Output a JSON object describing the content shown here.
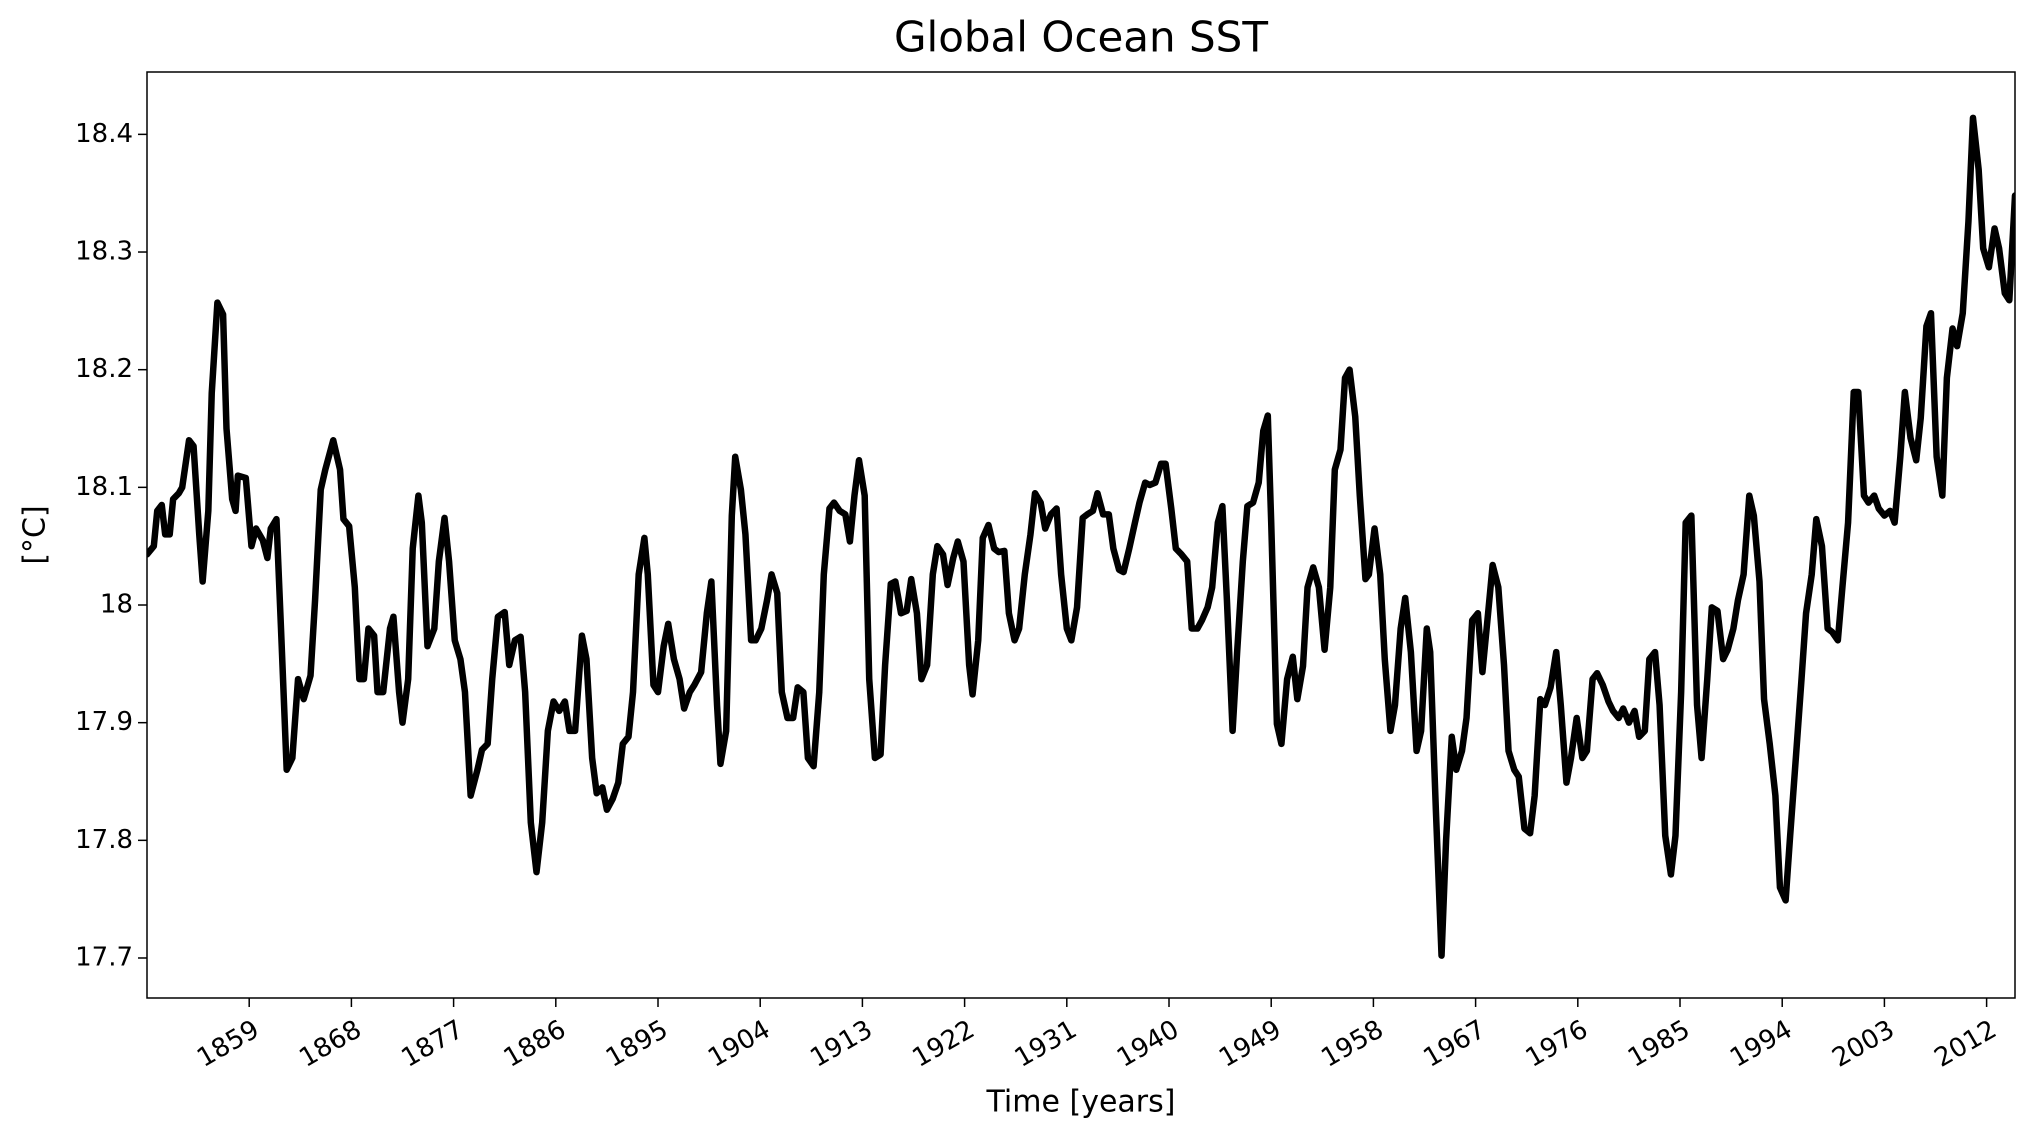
{
  "chart_data": {
    "type": "line",
    "title": "Global Ocean SST",
    "xlabel": "Time [years]",
    "ylabel": "[°C]",
    "color": "#000000",
    "x": [
      1850.0,
      1850.6,
      1850.9,
      1851.3,
      1851.6,
      1852.0,
      1852.3,
      1852.8,
      1853.1,
      1853.7,
      1854.1,
      1854.6,
      1854.9,
      1855.4,
      1855.7,
      1856.2,
      1856.7,
      1857.0,
      1857.5,
      1857.8,
      1858.0,
      1858.7,
      1859.2,
      1859.6,
      1860.2,
      1860.6,
      1860.9,
      1861.4,
      1861.8,
      1862.3,
      1862.8,
      1863.3,
      1863.8,
      1864.4,
      1864.8,
      1865.3,
      1865.7,
      1866.4,
      1867.0,
      1867.3,
      1867.8,
      1868.3,
      1868.7,
      1869.1,
      1869.5,
      1870.0,
      1870.3,
      1870.8,
      1871.4,
      1871.7,
      1872.2,
      1872.5,
      1873.0,
      1873.4,
      1873.9,
      1874.2,
      1874.7,
      1875.3,
      1875.7,
      1876.2,
      1876.6,
      1877.1,
      1877.6,
      1878.0,
      1878.5,
      1879.1,
      1879.5,
      1880.0,
      1880.4,
      1880.9,
      1881.5,
      1881.9,
      1882.4,
      1882.9,
      1883.3,
      1883.8,
      1884.3,
      1884.8,
      1885.3,
      1885.8,
      1886.3,
      1886.8,
      1887.2,
      1887.7,
      1888.3,
      1888.7,
      1889.2,
      1889.6,
      1890.1,
      1890.5,
      1891.0,
      1891.5,
      1891.9,
      1892.4,
      1892.8,
      1893.3,
      1893.8,
      1894.1,
      1894.6,
      1895.0,
      1895.5,
      1895.9,
      1896.4,
      1896.9,
      1897.3,
      1897.8,
      1898.2,
      1898.8,
      1899.3,
      1899.7,
      1900.2,
      1900.5,
      1901.0,
      1901.5,
      1901.8,
      1902.3,
      1902.7,
      1903.2,
      1903.6,
      1904.1,
      1904.6,
      1905.0,
      1905.5,
      1905.9,
      1906.4,
      1906.9,
      1907.3,
      1907.8,
      1908.2,
      1908.7,
      1909.2,
      1909.6,
      1910.1,
      1910.5,
      1911.0,
      1911.5,
      1911.9,
      1912.3,
      1912.7,
      1913.2,
      1913.6,
      1914.1,
      1914.6,
      1915.0,
      1915.5,
      1915.9,
      1916.4,
      1916.9,
      1917.3,
      1917.8,
      1918.2,
      1918.7,
      1919.2,
      1919.6,
      1920.1,
      1920.5,
      1921.0,
      1921.4,
      1921.9,
      1922.4,
      1922.7,
      1923.2,
      1923.6,
      1924.1,
      1924.6,
      1925.0,
      1925.5,
      1925.9,
      1926.4,
      1926.8,
      1927.3,
      1927.8,
      1928.2,
      1928.7,
      1929.1,
      1929.6,
      1930.1,
      1930.5,
      1931.0,
      1931.4,
      1931.9,
      1932.4,
      1932.8,
      1933.3,
      1933.7,
      1934.2,
      1934.7,
      1935.1,
      1935.6,
      1936.0,
      1936.5,
      1937.0,
      1937.4,
      1937.9,
      1938.3,
      1938.8,
      1939.3,
      1939.7,
      1940.2,
      1940.6,
      1941.1,
      1941.6,
      1942.0,
      1942.5,
      1942.9,
      1943.4,
      1943.8,
      1944.3,
      1944.7,
      1945.1,
      1945.6,
      1946.0,
      1946.5,
      1946.9,
      1947.4,
      1947.9,
      1948.3,
      1948.7,
      1949.0,
      1949.5,
      1949.9,
      1950.4,
      1950.9,
      1951.3,
      1951.8,
      1952.2,
      1952.7,
      1953.2,
      1953.7,
      1954.2,
      1954.6,
      1955.1,
      1955.5,
      1955.9,
      1956.4,
      1956.8,
      1957.3,
      1957.6,
      1958.1,
      1958.6,
      1959.0,
      1959.5,
      1959.9,
      1960.4,
      1960.8,
      1961.3,
      1961.8,
      1962.2,
      1962.7,
      1963.0,
      1963.5,
      1964.0,
      1964.4,
      1964.9,
      1965.3,
      1965.8,
      1966.2,
      1966.7,
      1967.2,
      1967.6,
      1968.1,
      1968.5,
      1969.0,
      1969.5,
      1969.9,
      1970.4,
      1970.8,
      1971.3,
      1971.8,
      1972.2,
      1972.7,
      1973.1,
      1973.6,
      1974.1,
      1974.5,
      1975.0,
      1975.4,
      1975.9,
      1976.4,
      1976.8,
      1977.3,
      1977.7,
      1978.2,
      1978.7,
      1979.1,
      1979.6,
      1980.0,
      1980.5,
      1981.0,
      1981.4,
      1981.9,
      1982.3,
      1982.8,
      1983.2,
      1983.7,
      1984.2,
      1984.6,
      1985.1,
      1985.5,
      1986.0,
      1986.5,
      1986.9,
      1987.4,
      1987.8,
      1988.3,
      1988.8,
      1989.2,
      1989.7,
      1990.1,
      1990.6,
      1991.1,
      1991.5,
      1992.0,
      1992.4,
      1992.9,
      1993.4,
      1993.8,
      1994.3,
      1994.7,
      1995.2,
      1995.7,
      1996.1,
      1996.6,
      1997.0,
      1997.5,
      1998.0,
      1998.4,
      1998.9,
      1999.3,
      1999.8,
      2000.3,
      2000.7,
      2001.2,
      2001.6,
      2002.1,
      2002.5,
      2003.0,
      2003.5,
      2003.9,
      2004.4,
      2004.8,
      2005.3,
      2005.8,
      2006.2,
      2006.7,
      2007.1,
      2007.6,
      2008.1,
      2008.5,
      2009.0,
      2009.4,
      2009.9,
      2010.4,
      2010.8,
      2011.3,
      2011.7,
      2012.2,
      2012.7,
      2013.1,
      2013.6,
      2014.0,
      2014.5
    ],
    "values": [
      18.043,
      18.05,
      18.08,
      18.085,
      18.06,
      18.06,
      18.09,
      18.095,
      18.1,
      18.14,
      18.135,
      18.06,
      18.02,
      18.08,
      18.18,
      18.257,
      18.247,
      18.15,
      18.09,
      18.08,
      18.11,
      18.108,
      18.05,
      18.065,
      18.055,
      18.04,
      18.065,
      18.073,
      17.98,
      17.86,
      17.87,
      17.937,
      17.92,
      17.94,
      18.004,
      18.098,
      18.115,
      18.14,
      18.115,
      18.073,
      18.067,
      18.015,
      17.937,
      17.937,
      17.98,
      17.974,
      17.926,
      17.926,
      17.98,
      17.99,
      17.926,
      17.9,
      17.937,
      18.048,
      18.093,
      18.07,
      17.965,
      17.98,
      18.037,
      18.074,
      18.037,
      17.97,
      17.954,
      17.926,
      17.838,
      17.86,
      17.877,
      17.882,
      17.937,
      17.99,
      17.994,
      17.949,
      17.97,
      17.973,
      17.926,
      17.815,
      17.773,
      17.815,
      17.893,
      17.918,
      17.91,
      17.918,
      17.893,
      17.893,
      17.974,
      17.954,
      17.87,
      17.84,
      17.845,
      17.826,
      17.835,
      17.849,
      17.882,
      17.888,
      17.926,
      18.026,
      18.057,
      18.026,
      17.932,
      17.926,
      17.965,
      17.984,
      17.954,
      17.937,
      17.912,
      17.926,
      17.932,
      17.943,
      17.993,
      18.02,
      17.915,
      17.865,
      17.893,
      18.076,
      18.126,
      18.098,
      18.06,
      17.97,
      17.97,
      17.98,
      18.004,
      18.026,
      18.01,
      17.926,
      17.904,
      17.904,
      17.93,
      17.926,
      17.87,
      17.863,
      17.926,
      18.026,
      18.082,
      18.087,
      18.08,
      18.077,
      18.054,
      18.093,
      18.123,
      18.093,
      17.937,
      17.87,
      17.873,
      17.949,
      18.018,
      18.02,
      17.993,
      17.995,
      18.022,
      17.993,
      17.937,
      17.949,
      18.026,
      18.05,
      18.043,
      18.017,
      18.04,
      18.054,
      18.037,
      17.949,
      17.924,
      17.97,
      18.057,
      18.068,
      18.048,
      18.045,
      18.046,
      17.993,
      17.97,
      17.98,
      18.026,
      18.06,
      18.095,
      18.087,
      18.065,
      18.077,
      18.082,
      18.026,
      17.98,
      17.97,
      17.998,
      18.074,
      18.077,
      18.08,
      18.095,
      18.077,
      18.077,
      18.048,
      18.03,
      18.028,
      18.048,
      18.07,
      18.087,
      18.104,
      18.102,
      18.104,
      18.12,
      18.12,
      18.082,
      18.048,
      18.043,
      18.037,
      17.98,
      17.98,
      17.987,
      17.998,
      18.015,
      18.07,
      18.084,
      18.004,
      17.893,
      17.96,
      18.037,
      18.084,
      18.087,
      18.104,
      18.148,
      18.161,
      18.07,
      17.899,
      17.882,
      17.937,
      17.956,
      17.92,
      17.948,
      18.015,
      18.032,
      18.015,
      17.962,
      18.015,
      18.115,
      18.132,
      18.193,
      18.2,
      18.16,
      18.093,
      18.022,
      18.026,
      18.065,
      18.026,
      17.954,
      17.893,
      17.915,
      17.98,
      18.006,
      17.96,
      17.876,
      17.893,
      17.98,
      17.96,
      17.826,
      17.702,
      17.8,
      17.888,
      17.86,
      17.876,
      17.904,
      17.987,
      17.993,
      17.943,
      17.993,
      18.034,
      18.015,
      17.949,
      17.876,
      17.86,
      17.854,
      17.81,
      17.806,
      17.838,
      17.92,
      17.915,
      17.93,
      17.96,
      17.915,
      17.849,
      17.87,
      17.904,
      17.87,
      17.876,
      17.937,
      17.942,
      17.932,
      17.918,
      17.91,
      17.904,
      17.912,
      17.9,
      17.91,
      17.888,
      17.893,
      17.954,
      17.96,
      17.915,
      17.804,
      17.771,
      17.804,
      17.926,
      18.07,
      18.076,
      17.915,
      17.87,
      17.937,
      17.998,
      17.995,
      17.954,
      17.962,
      17.98,
      18.004,
      18.026,
      18.093,
      18.076,
      18.02,
      17.92,
      17.882,
      17.838,
      17.76,
      17.749,
      17.804,
      17.87,
      17.937,
      17.993,
      18.026,
      18.073,
      18.05,
      17.98,
      17.977,
      17.97,
      18.015,
      18.07,
      18.181,
      18.181,
      18.093,
      18.087,
      18.093,
      18.082,
      18.076,
      18.08,
      18.07,
      18.126,
      18.181,
      18.142,
      18.123,
      18.159,
      18.237,
      18.248,
      18.126,
      18.093,
      18.193,
      18.235,
      18.22,
      18.248,
      18.326,
      18.414,
      18.37,
      18.303,
      18.287,
      18.32,
      18.303,
      18.265,
      18.259,
      18.348
    ],
    "xlim": [
      1850,
      2014.5
    ],
    "xticks": [
      1859,
      1868,
      1877,
      1886,
      1895,
      1904,
      1913,
      1922,
      1931,
      1940,
      1949,
      1958,
      1967,
      1976,
      1985,
      1994,
      2003,
      2012
    ],
    "ylim": [
      17.666,
      18.453
    ],
    "yticks": [
      17.7,
      17.8,
      17.9,
      18.0,
      18.1,
      18.2,
      18.3,
      18.4
    ],
    "grid": false
  }
}
